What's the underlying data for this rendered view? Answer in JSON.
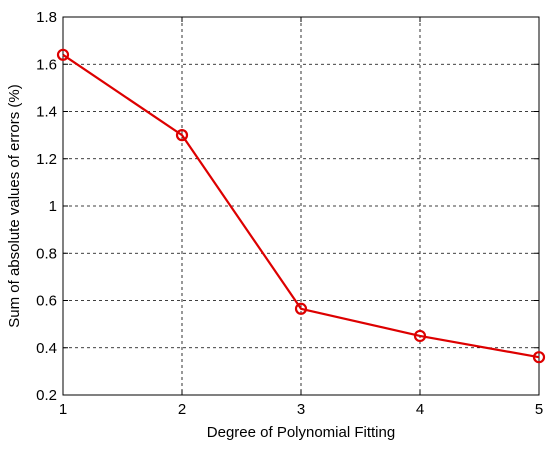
{
  "chart_data": {
    "type": "line",
    "title": "",
    "xlabel": "Degree of Polynomial Fitting",
    "ylabel": "Sum of absolute values of errors (%)",
    "x": [
      1,
      2,
      3,
      4,
      5
    ],
    "series": [
      {
        "values": [
          1.64,
          1.3,
          0.565,
          0.45,
          0.36
        ]
      }
    ],
    "xlim": [
      1,
      5
    ],
    "ylim": [
      0.2,
      1.8
    ],
    "xticks": [
      "1",
      "2",
      "3",
      "4",
      "5"
    ],
    "yticks": [
      "0.2",
      "0.4",
      "0.6",
      "0.8",
      "1",
      "1.2",
      "1.4",
      "1.6",
      "1.8"
    ],
    "grid": true,
    "marker": "circle",
    "line_color": "#dd0000",
    "grid_color": "#000000"
  }
}
